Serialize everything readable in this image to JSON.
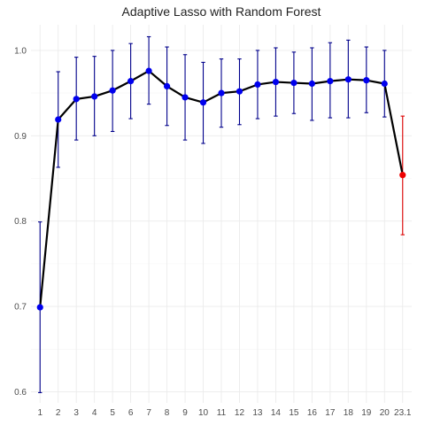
{
  "chart_data": {
    "type": "scatter",
    "title": "Adaptive Lasso with Random Forest",
    "xlabel": "",
    "ylabel": "",
    "categories": [
      "1",
      "2",
      "3",
      "4",
      "5",
      "6",
      "7",
      "8",
      "9",
      "10",
      "11",
      "12",
      "13",
      "14",
      "15",
      "16",
      "17",
      "18",
      "19",
      "20",
      "23.1"
    ],
    "series": [
      {
        "values": [
          0.699,
          0.919,
          0.943,
          0.946,
          0.953,
          0.964,
          0.976,
          0.958,
          0.945,
          0.939,
          0.95,
          0.952,
          0.96,
          0.963,
          0.962,
          0.961,
          0.964,
          0.966,
          0.965,
          0.961,
          0.854
        ],
        "lower": [
          0.599,
          0.863,
          0.895,
          0.9,
          0.905,
          0.92,
          0.937,
          0.912,
          0.895,
          0.891,
          0.91,
          0.913,
          0.92,
          0.923,
          0.926,
          0.918,
          0.921,
          0.921,
          0.927,
          0.922,
          0.784
        ],
        "upper": [
          0.799,
          0.975,
          0.992,
          0.993,
          1.0,
          1.008,
          1.016,
          1.004,
          0.995,
          0.986,
          0.99,
          0.99,
          1.0,
          1.003,
          0.998,
          1.003,
          1.009,
          1.012,
          1.004,
          1.0,
          0.923
        ],
        "colors": [
          "#0000ee",
          "#0000ee",
          "#0000ee",
          "#0000ee",
          "#0000ee",
          "#0000ee",
          "#0000ee",
          "#0000ee",
          "#0000ee",
          "#0000ee",
          "#0000ee",
          "#0000ee",
          "#0000ee",
          "#0000ee",
          "#0000ee",
          "#0000ee",
          "#0000ee",
          "#0000ee",
          "#0000ee",
          "#0000ee",
          "#ee0000"
        ]
      }
    ],
    "yticks": [
      "0.6",
      "0.7",
      "0.8",
      "0.9",
      "1.0"
    ],
    "ylim": [
      0.587,
      1.03
    ],
    "grid": true,
    "colors": {
      "line": "#000000",
      "point": "#0000ee",
      "errorbar": "#00008b",
      "highlight_point": "#ee0000",
      "highlight_errorbar": "#dd0000",
      "grid": "#ebebeb",
      "background": "#ffffff"
    }
  }
}
